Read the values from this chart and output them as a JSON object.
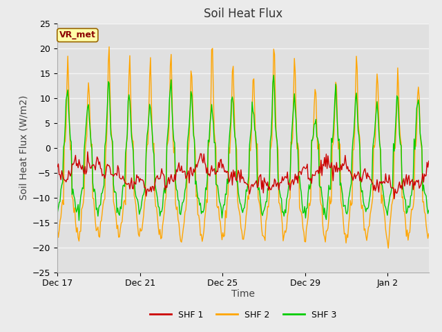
{
  "title": "Soil Heat Flux",
  "xlabel": "Time",
  "ylabel": "Soil Heat Flux (W/m2)",
  "ylim": [
    -25,
    25
  ],
  "yticks": [
    -25,
    -20,
    -15,
    -10,
    -5,
    0,
    5,
    10,
    15,
    20,
    25
  ],
  "xtick_labels": [
    "Dec 17",
    "Dec 21",
    "Dec 25",
    "Dec 29",
    "Jan 2"
  ],
  "xtick_positions": [
    0,
    4,
    8,
    12,
    16
  ],
  "xlim": [
    0,
    18
  ],
  "colors": {
    "SHF 1": "#cc0000",
    "SHF 2": "#ffa500",
    "SHF 3": "#00cc00"
  },
  "legend_labels": [
    "SHF 1",
    "SHF 2",
    "SHF 3"
  ],
  "annotation_text": "VR_met",
  "annotation_bg": "#ffffaa",
  "annotation_border": "#996600",
  "fig_bg_color": "#ebebeb",
  "plot_bg_color": "#e0e0e0",
  "grid_color": "#f5f5f5",
  "title_fontsize": 12,
  "axis_label_fontsize": 10,
  "tick_fontsize": 9,
  "line_width": 1.0,
  "n_points": 432
}
